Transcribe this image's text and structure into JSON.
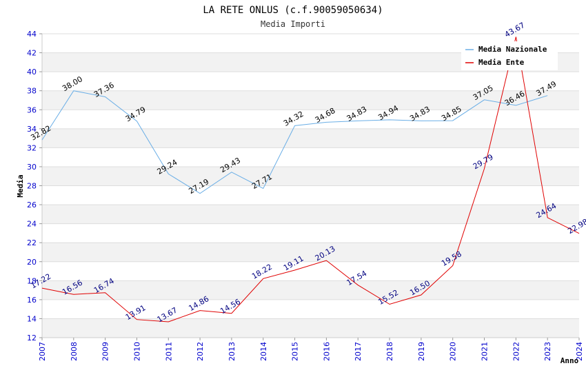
{
  "chart_data": {
    "type": "line",
    "title": "LA RETE ONLUS (c.f.90059050634)",
    "subtitle": "Media Importi",
    "xlabel": "Anno",
    "ylabel": "Media",
    "ylim": [
      12,
      44
    ],
    "yticks": [
      12,
      14,
      16,
      18,
      20,
      22,
      24,
      26,
      28,
      30,
      32,
      34,
      36,
      38,
      40,
      42,
      44
    ],
    "categories": [
      "2007",
      "2008",
      "2009",
      "2010",
      "2011",
      "2012",
      "2013",
      "2014",
      "2015",
      "2016",
      "2017",
      "2018",
      "2019",
      "2020",
      "2021",
      "2022",
      "2023",
      "2024"
    ],
    "legend_position": "top-right",
    "series": [
      {
        "name": "Media Nazionale",
        "color": "#6aaee6",
        "label_color": "#000000",
        "values": [
          32.82,
          38.0,
          37.36,
          34.79,
          29.24,
          27.19,
          29.43,
          27.71,
          34.32,
          34.68,
          34.83,
          34.94,
          34.83,
          34.85,
          37.05,
          36.46,
          37.49,
          null
        ],
        "labels": [
          "32.82",
          "38.00",
          "37.36",
          "34.79",
          "29.24",
          "27.19",
          "29.43",
          "27.71",
          "34.32",
          "34.68",
          "34.83",
          "34.94",
          "34.83",
          "34.85",
          "37.05",
          "36.46",
          "37.49",
          ""
        ]
      },
      {
        "name": "Media Ente",
        "color": "#e00000",
        "label_color": "#000080",
        "values": [
          17.22,
          16.56,
          16.74,
          13.91,
          13.67,
          14.86,
          14.56,
          18.22,
          19.11,
          20.13,
          17.54,
          15.52,
          16.5,
          19.58,
          29.79,
          43.67,
          24.64,
          22.98
        ],
        "labels": [
          "17.22",
          "16.56",
          "16.74",
          "13.91",
          "13.67",
          "14.86",
          "14.56",
          "18.22",
          "19.11",
          "20.13",
          "17.54",
          "15.52",
          "16.50",
          "19.58",
          "29.79",
          "43.67",
          "24.64",
          "22.98"
        ]
      }
    ]
  }
}
